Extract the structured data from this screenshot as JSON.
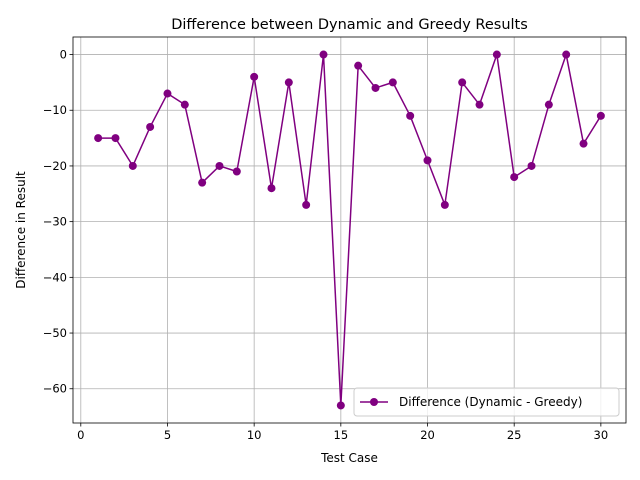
{
  "chart_data": {
    "type": "line",
    "title": "Difference between Dynamic and Greedy Results",
    "xlabel": "Test Case",
    "ylabel": "Difference in Result",
    "xlim": [
      -0.45,
      31.45
    ],
    "ylim": [
      -66.15,
      3.15
    ],
    "xticks": [
      0,
      5,
      10,
      15,
      20,
      25,
      30
    ],
    "yticks": [
      0,
      -10,
      -20,
      -30,
      -40,
      -50,
      -60
    ],
    "xtick_labels": [
      "0",
      "5",
      "10",
      "15",
      "20",
      "25",
      "30"
    ],
    "ytick_labels": [
      "0",
      "−10",
      "−20",
      "−30",
      "−40",
      "−50",
      "−60"
    ],
    "grid": true,
    "legend_position": "lower-right",
    "series": [
      {
        "name": "Difference (Dynamic - Greedy)",
        "color": "#800080",
        "marker": "circle",
        "x": [
          1,
          2,
          3,
          4,
          5,
          6,
          7,
          8,
          9,
          10,
          11,
          12,
          13,
          14,
          15,
          16,
          17,
          18,
          19,
          20,
          21,
          22,
          23,
          24,
          25,
          26,
          27,
          28,
          29,
          30
        ],
        "y": [
          -15,
          -15,
          -20,
          -13,
          -7,
          -9,
          -23,
          -20,
          -21,
          -4,
          -24,
          -5,
          -27,
          0,
          -63,
          -2,
          -6,
          -5,
          -11,
          -19,
          -27,
          -5,
          -9,
          0,
          -22,
          -20,
          -9,
          0,
          -16,
          -11
        ]
      }
    ]
  }
}
